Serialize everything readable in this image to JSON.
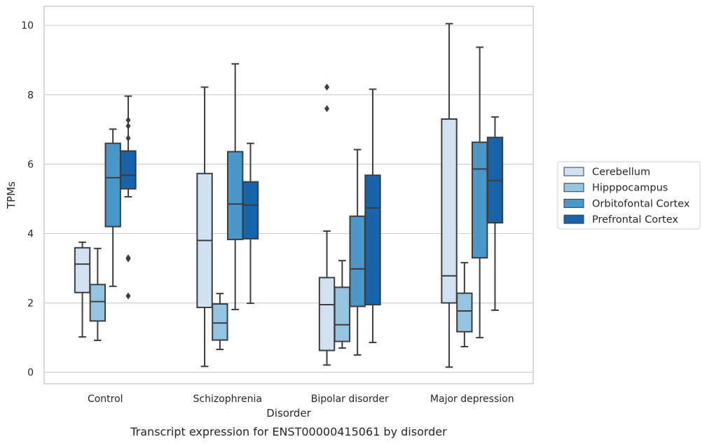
{
  "chart_data": {
    "type": "box",
    "title": "",
    "caption": "Transcript expression for ENST00000415061 by disorder",
    "xlabel": "Disorder",
    "ylabel": "TPMs",
    "ylim": [
      -0.33,
      10.55
    ],
    "yticks": [
      "0",
      "2",
      "4",
      "6",
      "8",
      "10"
    ],
    "grid": "horizontal",
    "legend_position": "right",
    "categories": [
      "Control",
      "Schizophrenia",
      "Bipolar disorder",
      "Major depression"
    ],
    "series": [
      {
        "name": "Cerebellum",
        "color": "#d0e1f1",
        "boxes": [
          {
            "whisker_low": 1.02,
            "q1": 2.3,
            "median": 3.12,
            "q3": 3.59,
            "whisker_high": 3.75,
            "outliers": []
          },
          {
            "whisker_low": 0.17,
            "q1": 1.87,
            "median": 3.8,
            "q3": 5.73,
            "whisker_high": 8.22,
            "outliers": []
          },
          {
            "whisker_low": 0.21,
            "q1": 0.63,
            "median": 1.95,
            "q3": 2.73,
            "whisker_high": 4.07,
            "outliers": [
              8.22,
              7.6
            ]
          },
          {
            "whisker_low": 0.15,
            "q1": 2.0,
            "median": 2.78,
            "q3": 7.3,
            "whisker_high": 10.05,
            "outliers": []
          }
        ]
      },
      {
        "name": "Hipppocampus",
        "color": "#94c4df",
        "boxes": [
          {
            "whisker_low": 0.92,
            "q1": 1.48,
            "median": 2.04,
            "q3": 2.53,
            "whisker_high": 3.57,
            "outliers": []
          },
          {
            "whisker_low": 0.66,
            "q1": 0.93,
            "median": 1.42,
            "q3": 1.97,
            "whisker_high": 2.27,
            "outliers": []
          },
          {
            "whisker_low": 0.7,
            "q1": 0.89,
            "median": 1.37,
            "q3": 2.45,
            "whisker_high": 3.22,
            "outliers": []
          },
          {
            "whisker_low": 0.74,
            "q1": 1.17,
            "median": 1.77,
            "q3": 2.28,
            "whisker_high": 3.16,
            "outliers": []
          }
        ]
      },
      {
        "name": "Orbitofontal Cortex",
        "color": "#4a98c9",
        "boxes": [
          {
            "whisker_low": 2.48,
            "q1": 4.2,
            "median": 5.61,
            "q3": 6.6,
            "whisker_high": 7.01,
            "outliers": []
          },
          {
            "whisker_low": 1.81,
            "q1": 3.83,
            "median": 4.85,
            "q3": 6.36,
            "whisker_high": 8.89,
            "outliers": []
          },
          {
            "whisker_low": 0.5,
            "q1": 1.9,
            "median": 2.98,
            "q3": 4.5,
            "whisker_high": 6.42,
            "outliers": []
          },
          {
            "whisker_low": 1.0,
            "q1": 3.3,
            "median": 5.86,
            "q3": 6.63,
            "whisker_high": 9.37,
            "outliers": []
          }
        ]
      },
      {
        "name": "Prefrontal Cortex",
        "color": "#1764ab",
        "boxes": [
          {
            "whisker_low": 5.06,
            "q1": 5.29,
            "median": 5.68,
            "q3": 6.38,
            "whisker_high": 7.96,
            "outliers": [
              7.27,
              7.1,
              6.75,
              3.3,
              3.27,
              2.2
            ]
          },
          {
            "whisker_low": 1.99,
            "q1": 3.85,
            "median": 4.82,
            "q3": 5.49,
            "whisker_high": 6.6,
            "outliers": []
          },
          {
            "whisker_low": 0.86,
            "q1": 1.95,
            "median": 4.74,
            "q3": 5.68,
            "whisker_high": 8.16,
            "outliers": []
          },
          {
            "whisker_low": 1.79,
            "q1": 4.31,
            "median": 5.53,
            "q3": 6.77,
            "whisker_high": 7.36,
            "outliers": []
          }
        ]
      }
    ]
  }
}
